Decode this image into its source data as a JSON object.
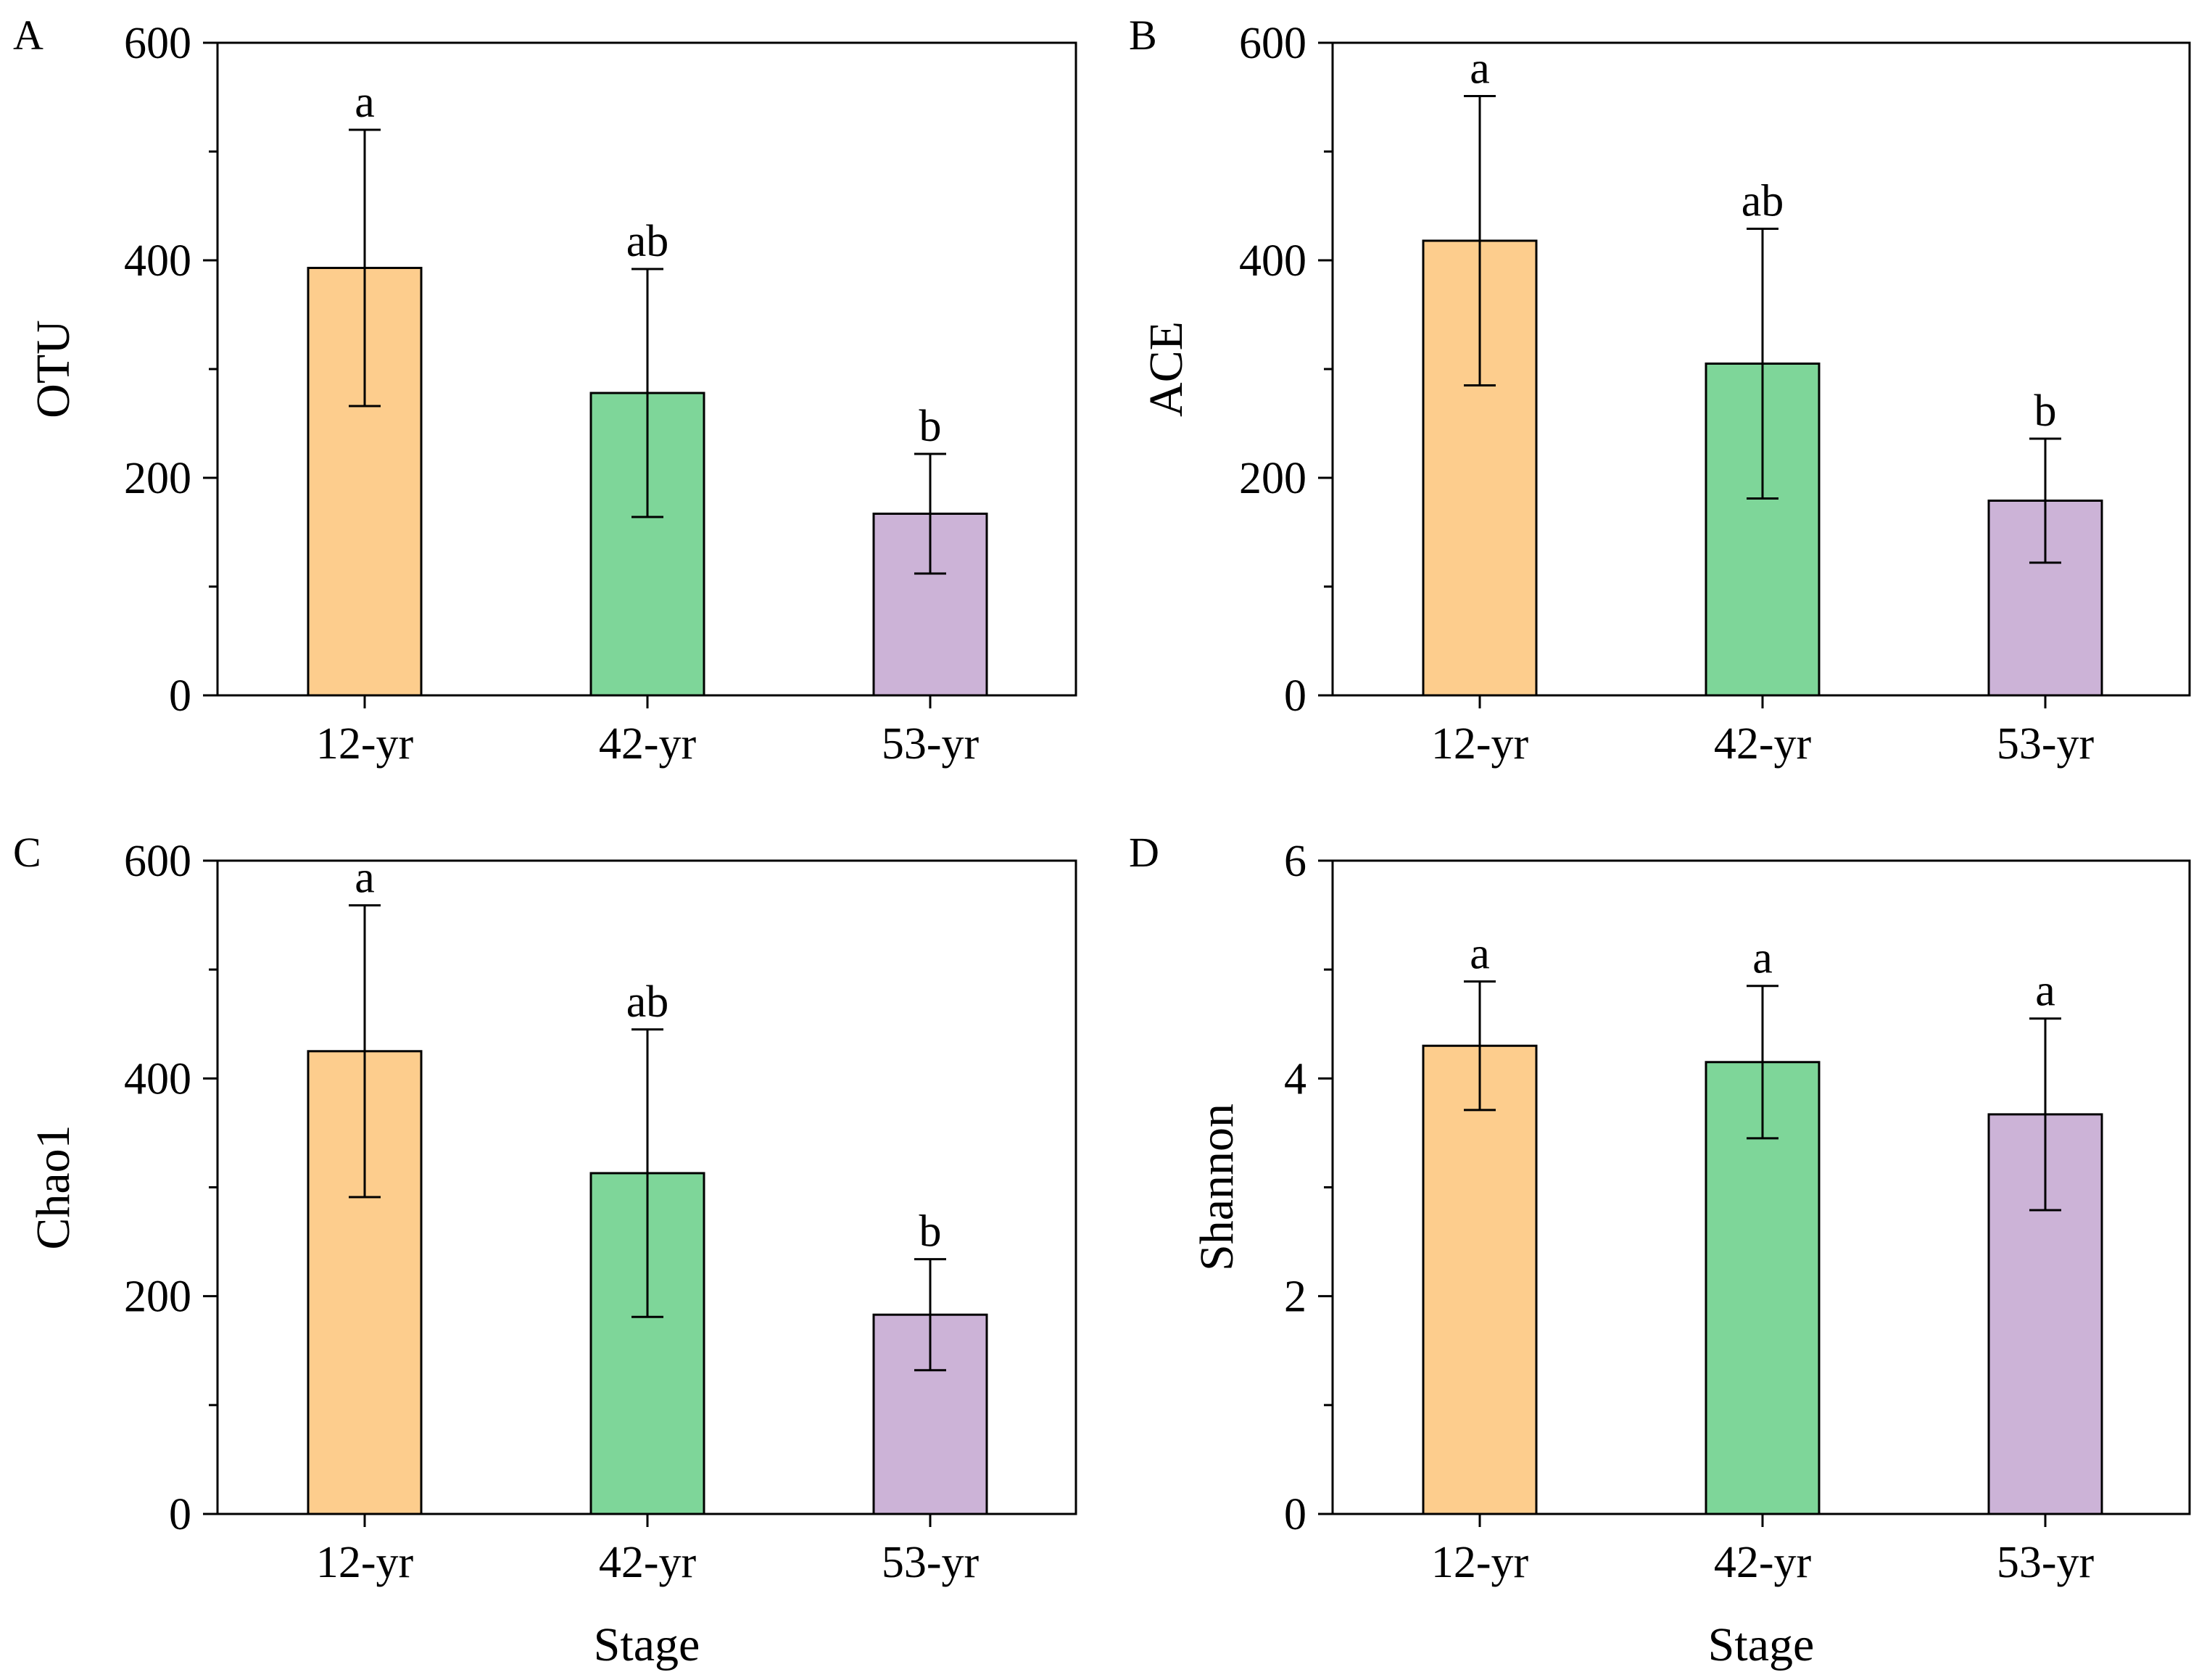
{
  "chart_data": [
    {
      "panel": "A",
      "type": "bar",
      "categories": [
        "12-yr",
        "42-yr",
        "53-yr"
      ],
      "values": [
        393,
        278,
        167
      ],
      "errors": [
        127,
        114,
        55
      ],
      "significance": [
        "a",
        "ab",
        "b"
      ],
      "ylabel": "OTU",
      "xlabel": "",
      "ylim": [
        0,
        600
      ],
      "yticks": [
        "0",
        "200",
        "400",
        "600"
      ],
      "colors": [
        "#FDCD8D",
        "#7ED699",
        "#CCB3D7"
      ],
      "grid": false
    },
    {
      "panel": "B",
      "type": "bar",
      "categories": [
        "12-yr",
        "42-yr",
        "53-yr"
      ],
      "values": [
        418,
        305,
        179
      ],
      "errors": [
        133,
        124,
        57
      ],
      "significance": [
        "a",
        "ab",
        "b"
      ],
      "ylabel": "ACE",
      "xlabel": "",
      "ylim": [
        0,
        600
      ],
      "yticks": [
        "0",
        "200",
        "400",
        "600"
      ],
      "colors": [
        "#FDCD8D",
        "#7ED699",
        "#CCB3D7"
      ],
      "grid": false
    },
    {
      "panel": "C",
      "type": "bar",
      "categories": [
        "12-yr",
        "42-yr",
        "53-yr"
      ],
      "values": [
        425,
        313,
        183
      ],
      "errors": [
        134,
        132,
        51
      ],
      "significance": [
        "a",
        "ab",
        "b"
      ],
      "ylabel": "Chao1",
      "xlabel": "Stage",
      "ylim": [
        0,
        600
      ],
      "yticks": [
        "0",
        "200",
        "400",
        "600"
      ],
      "colors": [
        "#FDCD8D",
        "#7ED699",
        "#CCB3D7"
      ],
      "grid": false
    },
    {
      "panel": "D",
      "type": "bar",
      "categories": [
        "12-yr",
        "42-yr",
        "53-yr"
      ],
      "values": [
        4.3,
        4.15,
        3.67
      ],
      "errors": [
        0.59,
        0.7,
        0.88
      ],
      "significance": [
        "a",
        "a",
        "a"
      ],
      "ylabel": "Shannon",
      "xlabel": "Stage",
      "ylim": [
        0,
        6
      ],
      "yticks": [
        "0",
        "2",
        "4",
        "6"
      ],
      "colors": [
        "#FDCD8D",
        "#7ED699",
        "#CCB3D7"
      ],
      "grid": false
    }
  ]
}
